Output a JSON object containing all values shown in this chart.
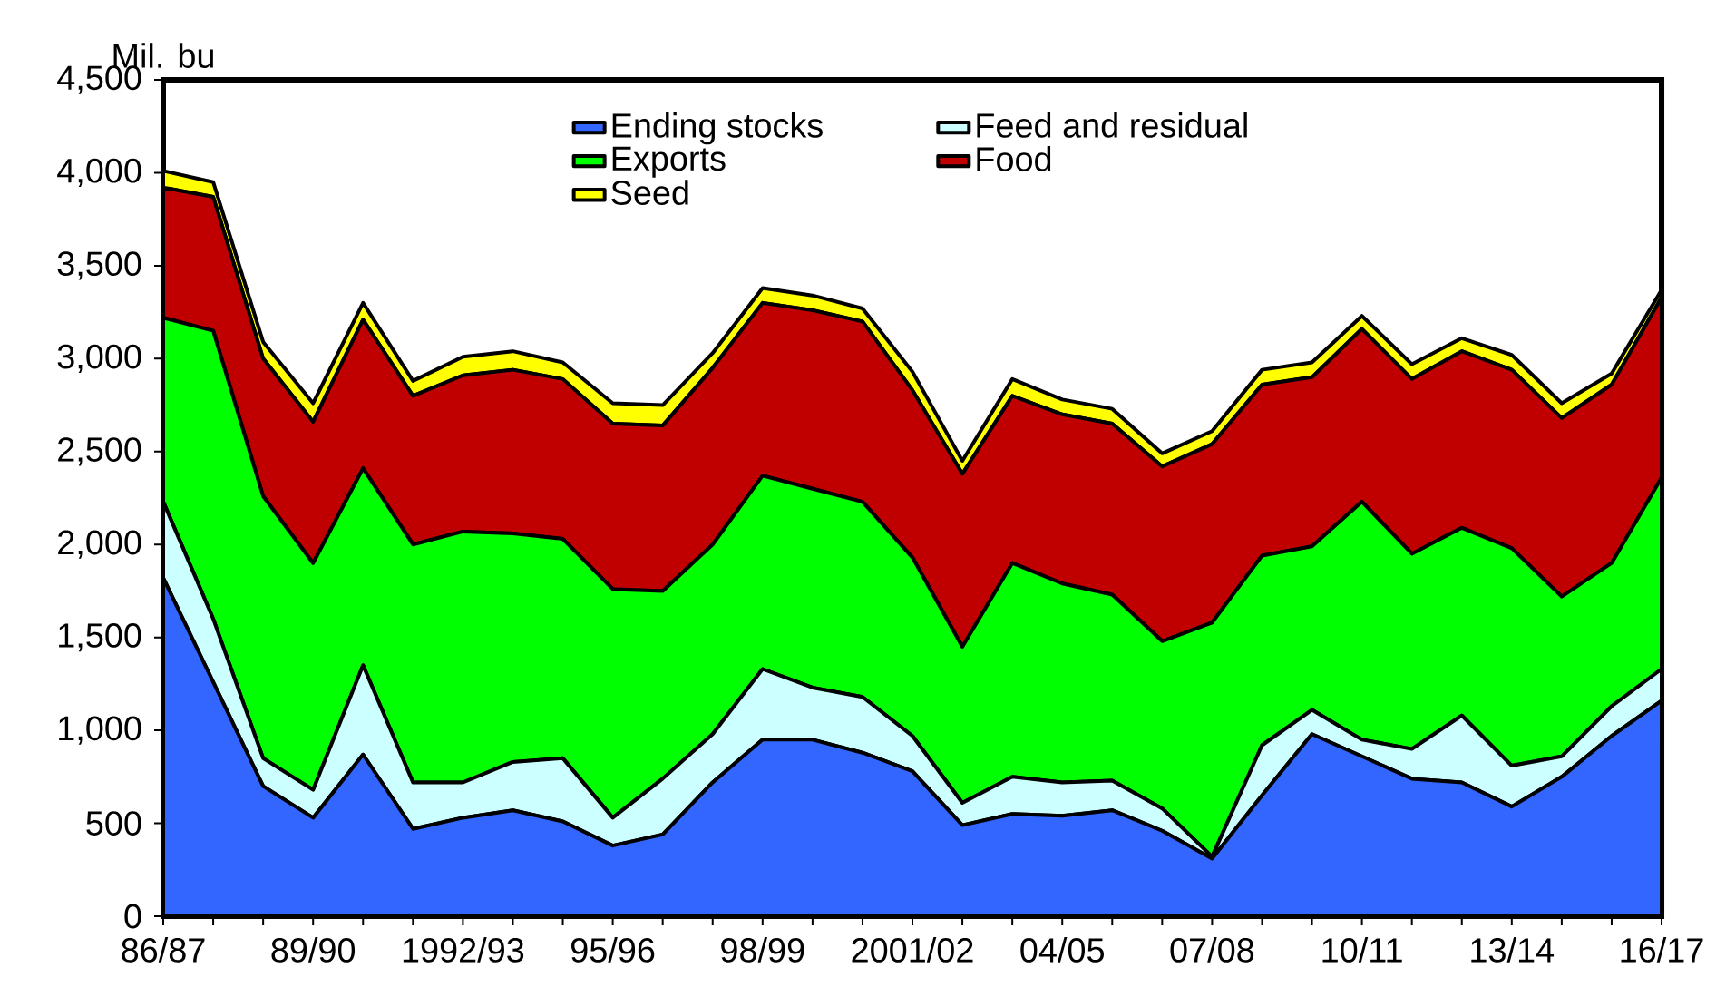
{
  "chart_data": {
    "type": "area",
    "stacked": true,
    "ylabel": "Mil. bu",
    "legend": "top",
    "categories": [
      "86/87",
      null,
      null,
      "89/90",
      null,
      null,
      "1992/93",
      null,
      null,
      "95/96",
      null,
      null,
      "98/99",
      null,
      null,
      "2001/02",
      null,
      null,
      "04/05",
      null,
      null,
      "07/08",
      null,
      null,
      "10/11",
      null,
      null,
      "13/14",
      null,
      null,
      "16/17"
    ],
    "ylim": [
      0,
      4500
    ],
    "yticks": [
      0,
      500,
      {
        "value": 1000,
        "label": "1,000"
      },
      {
        "value": 1500,
        "label": "1,500"
      },
      {
        "value": 2000,
        "label": "2,000"
      },
      {
        "value": 2500,
        "label": "2,500"
      },
      {
        "value": 3000,
        "label": "3,000"
      },
      {
        "value": 3500,
        "label": "3,500"
      },
      {
        "value": 4000,
        "label": "4,000"
      },
      {
        "value": 4500,
        "label": "4,500"
      }
    ],
    "series": [
      {
        "name": "Ending stocks",
        "color": "#3366ff",
        "values": [
          1820,
          1260,
          700,
          530,
          870,
          470,
          530,
          570,
          510,
          380,
          440,
          720,
          950,
          950,
          880,
          780,
          490,
          550,
          540,
          570,
          460,
          310,
          650,
          980,
          860,
          740,
          720,
          590,
          750,
          970,
          1160
        ]
      },
      {
        "name": "Feed and residual",
        "color": "#ccffff",
        "values": [
          410,
          340,
          150,
          150,
          480,
          250,
          190,
          260,
          340,
          150,
          300,
          260,
          380,
          280,
          300,
          190,
          120,
          200,
          180,
          160,
          120,
          10,
          270,
          130,
          90,
          160,
          360,
          220,
          110,
          160,
          170
        ]
      },
      {
        "name": "Exports",
        "color": "#00ff00",
        "values": [
          990,
          1550,
          1410,
          1220,
          1060,
          1280,
          1350,
          1230,
          1180,
          1230,
          1010,
          1020,
          1040,
          1070,
          1050,
          960,
          840,
          1150,
          1070,
          1000,
          900,
          1260,
          1020,
          880,
          1280,
          1050,
          1010,
          1170,
          860,
          770,
          1030
        ]
      },
      {
        "name": "Food",
        "color": "#c00000",
        "values": [
          700,
          720,
          740,
          760,
          800,
          800,
          840,
          880,
          860,
          890,
          890,
          950,
          930,
          960,
          970,
          900,
          930,
          900,
          910,
          920,
          940,
          960,
          920,
          910,
          930,
          940,
          950,
          960,
          960,
          960,
          970
        ]
      },
      {
        "name": "Seed",
        "color": "#ffff00",
        "values": [
          90,
          80,
          90,
          100,
          90,
          80,
          100,
          100,
          90,
          110,
          110,
          80,
          80,
          80,
          70,
          100,
          70,
          90,
          80,
          80,
          70,
          70,
          80,
          80,
          70,
          80,
          70,
          80,
          80,
          60,
          40
        ]
      }
    ]
  }
}
